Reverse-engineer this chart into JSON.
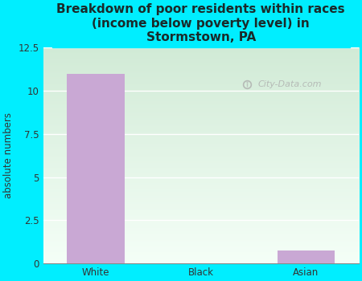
{
  "title": "Breakdown of poor residents within races\n(income below poverty level) in\nStormstown, PA",
  "categories": [
    "White",
    "Black",
    "Asian"
  ],
  "values": [
    11,
    0,
    0.75
  ],
  "bar_color": "#C9A8D4",
  "ylabel": "absolute numbers",
  "ylim": [
    0,
    12.5
  ],
  "yticks": [
    0,
    2.5,
    5,
    7.5,
    10,
    12.5
  ],
  "background_outer": "#00EEFF",
  "bg_top_left": "#d6eeda",
  "bg_bottom_right": "#f5fff8",
  "title_fontsize": 11,
  "axis_label_fontsize": 8.5,
  "tick_fontsize": 8.5,
  "watermark": "City-Data.com"
}
